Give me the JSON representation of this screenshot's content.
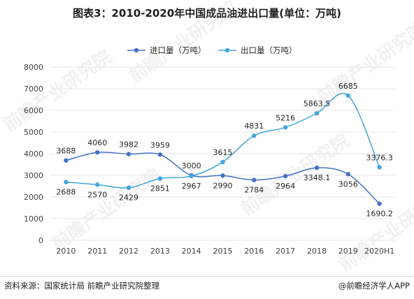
{
  "title": "图表3：2010-2020年中国成品油进出口量(单位：万吨)",
  "footer": {
    "source": "资料来源：国家统计局 前瞻产业研究院整理",
    "brand": "@前瞻经济学人APP"
  },
  "watermark_text": "前瞻产业研究院",
  "colors": {
    "import_line": "#4472c4",
    "export_line": "#41a6de",
    "grid": "#e6e6e6",
    "axis_text": "#404040",
    "label_text": "#262626"
  },
  "chart_data": {
    "type": "line",
    "title": "图表3：2010-2020年中国成品油进出口量(单位：万吨)",
    "xlabel": "",
    "ylabel": "",
    "categories": [
      "2010",
      "2011",
      "2012",
      "2013",
      "2014",
      "2015",
      "2016",
      "2017",
      "2018",
      "2019",
      "2020H1"
    ],
    "ylim": [
      0,
      8000
    ],
    "yticks": [
      0,
      1000,
      2000,
      3000,
      4000,
      5000,
      6000,
      7000,
      8000
    ],
    "grid": true,
    "legend_position": "top-center",
    "series": [
      {
        "name": "进口量（万吨）",
        "color": "#4472c4",
        "values": [
          3688,
          4060,
          3982,
          3959,
          3000,
          2990,
          2784,
          2964,
          3348.1,
          3056,
          1690.2
        ],
        "labels": [
          "3688",
          "4060",
          "3982",
          "3959",
          "3000",
          "2990",
          "2784",
          "2964",
          "3348.1",
          "3056",
          "1690.2"
        ]
      },
      {
        "name": "出口量（万吨）",
        "color": "#41a6de",
        "values": [
          2688,
          2570,
          2429,
          2851,
          2967,
          3615,
          4831,
          5216,
          5863.5,
          6685,
          3376.3
        ],
        "labels": [
          "2688",
          "2570",
          "2429",
          "2851",
          "2967",
          "3615",
          "4831",
          "5216",
          "5863.5",
          "6685",
          "3376.3"
        ]
      }
    ]
  }
}
